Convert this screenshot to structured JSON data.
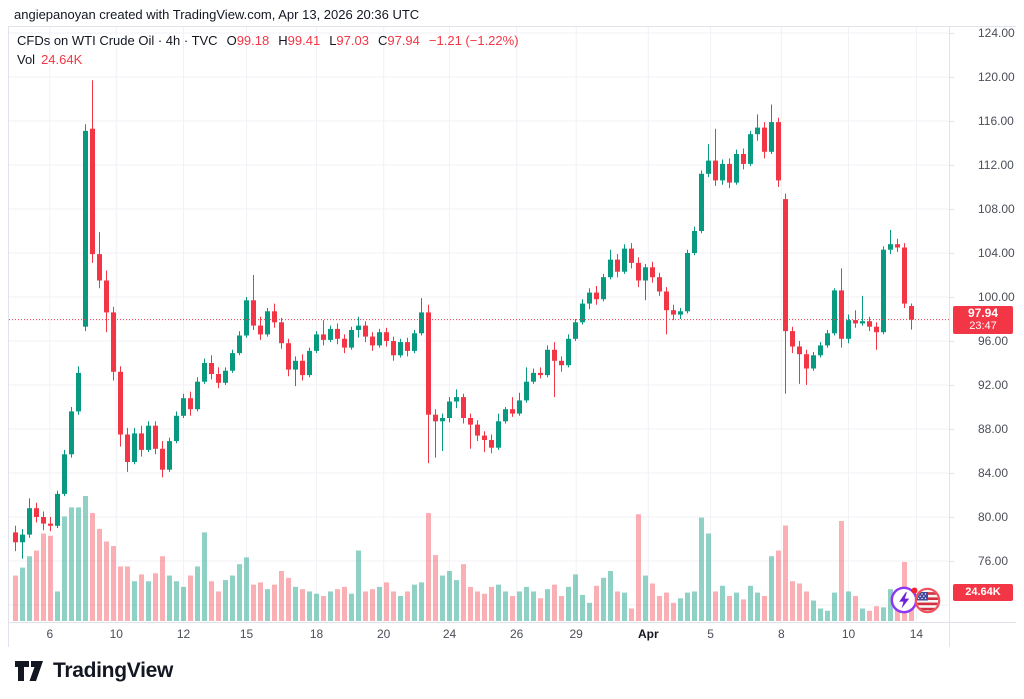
{
  "attribution": "angiepanoyan created with TradingView.com, Apr 13, 2026 20:36 UTC",
  "legend": {
    "symbol_text": "CFDs on WTI Crude Oil · 4h · TVC",
    "o_label": "O",
    "o_value": "99.18",
    "h_label": "H",
    "h_value": "99.41",
    "l_label": "L",
    "l_value": "97.03",
    "c_label": "C",
    "c_value": "97.94",
    "change": "−1.21 (−1.22%)",
    "vol_label": "Vol",
    "vol_value": "24.64K"
  },
  "price_scale": {
    "last_price": "97.94",
    "last_time": "23:47",
    "vol_badge": "24.64K"
  },
  "footer": {
    "brand": "TradingView"
  },
  "stickers": [
    {
      "name": "lightning-sticker"
    },
    {
      "name": "us-flag-sticker"
    }
  ],
  "chart_data": {
    "type": "candlestick+volume",
    "title": "CFDs on WTI Crude Oil",
    "interval": "4h",
    "exchange": "TVC",
    "last_ohlc": {
      "open": 99.18,
      "high": 99.41,
      "low": 97.03,
      "close": 97.94,
      "change": -1.21,
      "change_pct": -1.22
    },
    "last_close": 97.94,
    "last_time": "23:47",
    "last_volume_k": 24.64,
    "up_color": "#089981",
    "down_color": "#f23645",
    "vol_up_color": "rgba(8,153,129,0.45)",
    "vol_down_color": "rgba(242,54,69,0.40)",
    "grid_color": "#f0f2f5",
    "ylim": [
      72,
      124
    ],
    "price_tick_labels": [
      "124.00",
      "120.00",
      "116.00",
      "112.00",
      "108.00",
      "104.00",
      "100.00",
      "96.00",
      "92.00",
      "88.00",
      "84.00",
      "80.00",
      "76.00"
    ],
    "h_gridlines": [
      124,
      120,
      116,
      112,
      108,
      104,
      100,
      96,
      92,
      88,
      84,
      80,
      76,
      72
    ],
    "time_labels": [
      {
        "t": "6",
        "i": 4.9
      },
      {
        "t": "10",
        "i": 14.4
      },
      {
        "t": "12",
        "i": 24
      },
      {
        "t": "15",
        "i": 33
      },
      {
        "t": "18",
        "i": 43
      },
      {
        "t": "20",
        "i": 52.6
      },
      {
        "t": "24",
        "i": 62
      },
      {
        "t": "26",
        "i": 71.6
      },
      {
        "t": "29",
        "i": 80.1
      },
      {
        "t": "Apr",
        "i": 90.4,
        "bold": true
      },
      {
        "t": "5",
        "i": 99.3
      },
      {
        "t": "8",
        "i": 109.4
      },
      {
        "t": "10",
        "i": 119
      },
      {
        "t": "14",
        "i": 128.7
      }
    ],
    "candles": [
      [
        78.6,
        79.2,
        76.9,
        77.7,
        40
      ],
      [
        77.7,
        78.9,
        76.2,
        78.4,
        47
      ],
      [
        78.4,
        81.7,
        78.1,
        80.8,
        57
      ],
      [
        80.8,
        81.3,
        79.5,
        80.0,
        62
      ],
      [
        80.0,
        80.5,
        78.8,
        79.4,
        77
      ],
      [
        79.4,
        80.0,
        78.7,
        79.2,
        75
      ],
      [
        79.2,
        82.4,
        79.0,
        82.1,
        26
      ],
      [
        82.1,
        86.1,
        81.9,
        85.7,
        92
      ],
      [
        85.7,
        90.0,
        85.4,
        89.6,
        100
      ],
      [
        89.6,
        93.7,
        89.3,
        93.1,
        100
      ],
      [
        97.3,
        115.7,
        96.9,
        115.1,
        110
      ],
      [
        115.3,
        119.7,
        103.1,
        103.9,
        95
      ],
      [
        103.9,
        105.9,
        100.8,
        101.5,
        81
      ],
      [
        101.5,
        102.4,
        96.8,
        98.6,
        70
      ],
      [
        98.6,
        99.1,
        92.4,
        93.2,
        66
      ],
      [
        93.2,
        93.7,
        86.4,
        87.5,
        48
      ],
      [
        87.5,
        88.1,
        84.1,
        85.0,
        48
      ],
      [
        85.0,
        88.1,
        84.8,
        87.6,
        35
      ],
      [
        87.6,
        88.3,
        85.5,
        86.1,
        41
      ],
      [
        86.1,
        88.7,
        85.9,
        88.3,
        35
      ],
      [
        88.3,
        88.7,
        85.7,
        86.2,
        42
      ],
      [
        86.2,
        86.9,
        83.6,
        84.3,
        57
      ],
      [
        84.3,
        87.2,
        84.1,
        86.9,
        40
      ],
      [
        86.9,
        89.6,
        86.7,
        89.2,
        35
      ],
      [
        89.2,
        91.2,
        89.0,
        90.8,
        30
      ],
      [
        90.8,
        91.4,
        89.2,
        89.8,
        40
      ],
      [
        89.8,
        92.7,
        89.6,
        92.3,
        48
      ],
      [
        92.3,
        94.4,
        92.1,
        94.0,
        78
      ],
      [
        94.0,
        94.7,
        92.5,
        93.0,
        35
      ],
      [
        93.0,
        93.6,
        91.7,
        92.2,
        26
      ],
      [
        92.2,
        93.6,
        92.0,
        93.3,
        36
      ],
      [
        93.3,
        95.2,
        93.1,
        94.9,
        40
      ],
      [
        94.9,
        96.9,
        94.7,
        96.5,
        50
      ],
      [
        96.5,
        100.0,
        96.3,
        99.7,
        56
      ],
      [
        99.7,
        102.0,
        97.0,
        97.4,
        32
      ],
      [
        97.4,
        98.2,
        96.1,
        96.6,
        34
      ],
      [
        96.6,
        99.0,
        96.4,
        98.7,
        28
      ],
      [
        98.7,
        99.4,
        97.2,
        97.7,
        32
      ],
      [
        97.7,
        98.1,
        95.3,
        95.8,
        44
      ],
      [
        95.8,
        96.2,
        92.8,
        93.4,
        38
      ],
      [
        93.4,
        94.6,
        91.9,
        94.2,
        30
      ],
      [
        94.2,
        94.8,
        92.4,
        92.9,
        28
      ],
      [
        92.9,
        95.4,
        92.7,
        95.1,
        26
      ],
      [
        95.1,
        96.9,
        94.9,
        96.6,
        24
      ],
      [
        96.6,
        97.9,
        95.6,
        96.1,
        22
      ],
      [
        96.1,
        97.4,
        95.9,
        97.1,
        26
      ],
      [
        97.1,
        97.6,
        95.7,
        96.2,
        28
      ],
      [
        96.2,
        96.6,
        94.9,
        95.4,
        30
      ],
      [
        95.4,
        97.3,
        95.2,
        97.0,
        24
      ],
      [
        97.0,
        98.2,
        96.3,
        97.4,
        62
      ],
      [
        97.4,
        97.8,
        95.9,
        96.4,
        26
      ],
      [
        96.4,
        96.8,
        95.1,
        95.6,
        28
      ],
      [
        95.6,
        97.1,
        95.4,
        96.8,
        30
      ],
      [
        96.8,
        97.2,
        95.5,
        96.0,
        34
      ],
      [
        96.0,
        96.4,
        94.2,
        94.7,
        26
      ],
      [
        94.7,
        96.2,
        94.5,
        95.9,
        22
      ],
      [
        95.9,
        96.3,
        94.6,
        95.1,
        26
      ],
      [
        95.1,
        97.0,
        94.9,
        96.7,
        32
      ],
      [
        96.7,
        99.9,
        96.5,
        98.6,
        34
      ],
      [
        98.6,
        99.3,
        84.9,
        89.3,
        95
      ],
      [
        89.3,
        89.8,
        85.4,
        88.7,
        58
      ],
      [
        88.7,
        89.4,
        86.0,
        89.0,
        40
      ],
      [
        89.0,
        90.9,
        88.6,
        90.5,
        44
      ],
      [
        90.5,
        91.6,
        89.9,
        90.9,
        36
      ],
      [
        90.9,
        91.2,
        88.5,
        89.0,
        50
      ],
      [
        89.0,
        89.4,
        86.2,
        88.4,
        30
      ],
      [
        88.4,
        88.8,
        86.9,
        87.4,
        26
      ],
      [
        87.4,
        87.8,
        85.9,
        87.0,
        24
      ],
      [
        87.0,
        87.5,
        85.8,
        86.3,
        30
      ],
      [
        86.3,
        89.4,
        86.1,
        88.7,
        32
      ],
      [
        88.7,
        90.0,
        88.5,
        89.8,
        26
      ],
      [
        89.8,
        90.9,
        89.1,
        89.4,
        22
      ],
      [
        89.4,
        91.3,
        89.2,
        90.6,
        26
      ],
      [
        90.6,
        93.6,
        90.4,
        92.3,
        30
      ],
      [
        92.3,
        93.5,
        92.1,
        93.1,
        26
      ],
      [
        93.1,
        93.6,
        92.6,
        92.9,
        20
      ],
      [
        92.9,
        95.6,
        92.7,
        95.2,
        28
      ],
      [
        95.2,
        95.9,
        90.9,
        94.2,
        32
      ],
      [
        94.2,
        94.6,
        93.2,
        93.8,
        22
      ],
      [
        93.8,
        96.6,
        93.6,
        96.2,
        30
      ],
      [
        96.2,
        98.0,
        96.0,
        97.7,
        41
      ],
      [
        97.7,
        99.8,
        97.5,
        99.4,
        23
      ],
      [
        99.4,
        100.8,
        98.9,
        100.4,
        16
      ],
      [
        100.4,
        101.0,
        99.3,
        99.8,
        31
      ],
      [
        99.8,
        102.1,
        99.6,
        101.8,
        38
      ],
      [
        101.8,
        104.3,
        101.6,
        103.4,
        44
      ],
      [
        103.4,
        103.9,
        101.8,
        102.3,
        26
      ],
      [
        102.3,
        104.8,
        102.1,
        104.4,
        25
      ],
      [
        104.4,
        104.9,
        102.6,
        103.1,
        11
      ],
      [
        103.1,
        103.6,
        100.9,
        101.5,
        94
      ],
      [
        101.5,
        103.0,
        99.7,
        102.7,
        40
      ],
      [
        102.7,
        103.2,
        101.3,
        101.8,
        33
      ],
      [
        101.8,
        102.2,
        100.1,
        100.5,
        22
      ],
      [
        100.5,
        100.9,
        96.6,
        98.8,
        25
      ],
      [
        98.8,
        99.3,
        97.9,
        98.4,
        16
      ],
      [
        98.4,
        99.0,
        98.0,
        98.7,
        20
      ],
      [
        98.7,
        104.3,
        98.5,
        104.0,
        25
      ],
      [
        104.0,
        106.4,
        103.8,
        106.0,
        26
      ],
      [
        106.0,
        111.5,
        105.8,
        111.2,
        91
      ],
      [
        111.2,
        113.9,
        110.9,
        112.4,
        77
      ],
      [
        112.4,
        115.3,
        110.1,
        110.6,
        26
      ],
      [
        110.6,
        112.5,
        110.2,
        112.1,
        31
      ],
      [
        112.1,
        112.6,
        109.9,
        110.4,
        22
      ],
      [
        110.4,
        113.4,
        110.2,
        113.0,
        25
      ],
      [
        113.0,
        113.5,
        111.6,
        112.1,
        19
      ],
      [
        112.1,
        115.1,
        111.9,
        114.8,
        31
      ],
      [
        114.8,
        116.6,
        114.2,
        115.4,
        25
      ],
      [
        115.4,
        115.9,
        112.6,
        113.2,
        22
      ],
      [
        113.2,
        117.5,
        113.0,
        115.9,
        57
      ],
      [
        115.9,
        116.3,
        110.0,
        110.6,
        62
      ],
      [
        108.9,
        109.4,
        91.2,
        96.9,
        84
      ],
      [
        96.9,
        97.3,
        94.9,
        95.5,
        35
      ],
      [
        95.5,
        96.0,
        92.1,
        94.8,
        33
      ],
      [
        94.8,
        95.2,
        92.0,
        93.5,
        26
      ],
      [
        93.5,
        95.0,
        93.3,
        94.7,
        18
      ],
      [
        94.7,
        95.9,
        94.5,
        95.6,
        11
      ],
      [
        95.6,
        97.0,
        95.4,
        96.7,
        9
      ],
      [
        96.7,
        100.8,
        96.5,
        100.6,
        25
      ],
      [
        100.6,
        102.6,
        95.4,
        96.2,
        88
      ],
      [
        96.2,
        98.4,
        95.8,
        97.9,
        26
      ],
      [
        97.9,
        98.8,
        97.2,
        97.6,
        22
      ],
      [
        97.6,
        100.1,
        97.4,
        97.8,
        11
      ],
      [
        97.8,
        98.2,
        96.9,
        97.3,
        9
      ],
      [
        97.3,
        97.7,
        95.2,
        96.8,
        13
      ],
      [
        96.8,
        104.6,
        96.6,
        104.3,
        12
      ],
      [
        104.3,
        106.1,
        103.9,
        104.8,
        28
      ],
      [
        104.8,
        105.3,
        104.1,
        104.5,
        18
      ],
      [
        104.5,
        104.9,
        99.0,
        99.4,
        52
      ],
      [
        99.18,
        99.41,
        97.03,
        97.94,
        24.64
      ]
    ]
  }
}
